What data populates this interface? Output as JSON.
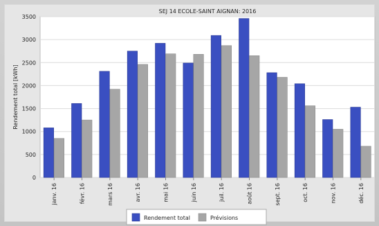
{
  "chart_data": {
    "type": "bar",
    "title": "SEJ 14 ECOLE-SAINT AIGNAN: 2016",
    "ylabel": "Rendement total [kWh]",
    "xlabel": "",
    "ylim": [
      0,
      3500
    ],
    "yticks": [
      0,
      500,
      1000,
      1500,
      2000,
      2500,
      3000,
      3500
    ],
    "grid": true,
    "legend_position": "bottom",
    "categories": [
      "janv. 16",
      "févr. 16",
      "mars 16",
      "avr. 16",
      "mai 16",
      "juin 16",
      "juil. 16",
      "août 16",
      "sept. 16",
      "oct. 16",
      "nov. 16",
      "déc. 16"
    ],
    "series": [
      {
        "name": "Rendement total",
        "color": "#3a4fc1",
        "values": [
          1080,
          1610,
          2310,
          2750,
          2920,
          2490,
          3090,
          3460,
          2280,
          2040,
          1260,
          1530
        ]
      },
      {
        "name": "Prévisions",
        "color": "#a6a6a6",
        "values": [
          850,
          1250,
          1920,
          2460,
          2690,
          2680,
          2870,
          2650,
          2180,
          1560,
          1050,
          680
        ]
      }
    ]
  }
}
